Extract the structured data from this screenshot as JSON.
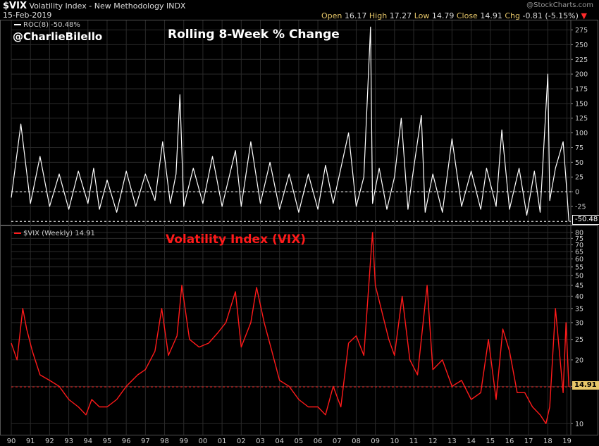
{
  "header": {
    "symbol": "$VIX",
    "name": "Volatility Index - New Methodology",
    "exchange": "INDX",
    "date": "15-Feb-2019",
    "watermark": "@StockCharts.com",
    "open_label": "Open",
    "open": "16.17",
    "high_label": "High",
    "high": "17.27",
    "low_label": "Low",
    "low": "14.79",
    "close_label": "Close",
    "close": "14.91",
    "chg_label": "Chg",
    "chg": "-0.81 (-5.15%)",
    "chg_arrow": "▼"
  },
  "handle": "@CharlieBilello",
  "colors": {
    "roc": "#ffffff",
    "vix": "#ff1a1a",
    "background": "#000000",
    "grid": "#2a2a2a"
  },
  "chart_data": [
    {
      "type": "line",
      "title": "Rolling 8-Week % Change",
      "legend": "ROC(8) -50.48%",
      "last_value_label": "-50.48",
      "y_axis_side": "right",
      "yticks": [
        275,
        250,
        225,
        200,
        175,
        150,
        125,
        100,
        75,
        50,
        25,
        0,
        -25
      ],
      "ylim": [
        -55,
        290
      ],
      "reference_line": -50.48,
      "zero_line": 0,
      "x": [
        1990.0,
        1990.5,
        1991.0,
        1991.5,
        1992.0,
        1992.5,
        1993.0,
        1993.5,
        1994.0,
        1994.3,
        1994.6,
        1995.0,
        1995.5,
        1996.0,
        1996.5,
        1997.0,
        1997.5,
        1997.9,
        1998.3,
        1998.6,
        1998.8,
        1999.0,
        1999.5,
        2000.0,
        2000.5,
        2001.0,
        2001.7,
        2002.0,
        2002.5,
        2003.0,
        2003.5,
        2004.0,
        2004.5,
        2005.0,
        2005.5,
        2006.0,
        2006.4,
        2006.8,
        2007.2,
        2007.6,
        2008.0,
        2008.4,
        2008.75,
        2008.85,
        2009.2,
        2009.6,
        2010.0,
        2010.35,
        2010.7,
        2011.0,
        2011.4,
        2011.6,
        2012.0,
        2012.5,
        2013.0,
        2013.5,
        2014.0,
        2014.5,
        2014.8,
        2015.3,
        2015.6,
        2016.0,
        2016.5,
        2016.9,
        2017.3,
        2017.6,
        2018.0,
        2018.1,
        2018.4,
        2018.8,
        2018.95,
        2019.1
      ],
      "values": [
        -10,
        115,
        -20,
        60,
        -25,
        30,
        -30,
        35,
        -20,
        40,
        -30,
        20,
        -35,
        35,
        -25,
        30,
        -15,
        85,
        -20,
        30,
        165,
        -25,
        40,
        -20,
        60,
        -25,
        70,
        -25,
        85,
        -20,
        50,
        -30,
        30,
        -35,
        30,
        -30,
        45,
        -20,
        40,
        100,
        -25,
        25,
        280,
        -20,
        40,
        -30,
        25,
        125,
        -30,
        40,
        130,
        -35,
        30,
        -35,
        90,
        -25,
        35,
        -30,
        40,
        -25,
        105,
        -30,
        40,
        -40,
        35,
        -35,
        200,
        -15,
        40,
        85,
        20,
        -50.48
      ]
    },
    {
      "type": "line",
      "title": "Volatility Index (VIX)",
      "legend": "$VIX (Weekly) 14.91",
      "last_value_label": "14.91",
      "y_axis_side": "right",
      "y_scale": "log",
      "yticks": [
        80,
        75,
        70,
        65,
        60,
        55,
        50,
        45,
        40,
        35,
        30,
        25,
        20,
        15,
        10
      ],
      "ytick_labels": [
        "80",
        "75",
        "70",
        "65",
        "60",
        "55",
        "50",
        "45",
        "40",
        "35",
        "30",
        "25",
        "20",
        "",
        "10"
      ],
      "ylim": [
        9,
        85
      ],
      "reference_line": 14.91,
      "x_tick_labels": [
        "90",
        "91",
        "92",
        "93",
        "94",
        "95",
        "96",
        "97",
        "98",
        "99",
        "00",
        "01",
        "02",
        "03",
        "04",
        "05",
        "06",
        "07",
        "08",
        "09",
        "10",
        "11",
        "12",
        "13",
        "14",
        "15",
        "16",
        "17",
        "18",
        "19"
      ],
      "x_ticks": [
        1990,
        1991,
        1992,
        1993,
        1994,
        1995,
        1996,
        1997,
        1998,
        1999,
        2000,
        2001,
        2002,
        2003,
        2004,
        2005,
        2006,
        2007,
        2008,
        2009,
        2010,
        2011,
        2012,
        2013,
        2014,
        2015,
        2016,
        2017,
        2018,
        2019
      ],
      "x": [
        1990.0,
        1990.3,
        1990.6,
        1990.8,
        1991.1,
        1991.5,
        1992.0,
        1992.5,
        1993.0,
        1993.5,
        1993.9,
        1994.2,
        1994.6,
        1995.0,
        1995.5,
        1996.0,
        1996.6,
        1997.0,
        1997.5,
        1997.85,
        1998.2,
        1998.65,
        1998.9,
        1999.3,
        1999.8,
        2000.3,
        2000.8,
        2001.2,
        2001.7,
        2002.0,
        2002.5,
        2002.8,
        2003.2,
        2003.6,
        2004.0,
        2004.5,
        2005.0,
        2005.5,
        2006.0,
        2006.4,
        2006.8,
        2007.2,
        2007.6,
        2008.0,
        2008.4,
        2008.85,
        2009.0,
        2009.3,
        2009.7,
        2010.0,
        2010.4,
        2010.8,
        2011.2,
        2011.7,
        2012.0,
        2012.5,
        2013.0,
        2013.5,
        2014.0,
        2014.5,
        2014.9,
        2015.3,
        2015.65,
        2016.0,
        2016.4,
        2016.8,
        2017.2,
        2017.6,
        2017.9,
        2018.1,
        2018.4,
        2018.8,
        2018.95,
        2019.1
      ],
      "values": [
        24,
        20,
        35,
        28,
        22,
        17,
        16,
        15,
        13,
        12,
        11,
        13,
        12,
        12,
        13,
        15,
        17,
        18,
        22,
        35,
        21,
        26,
        45,
        25,
        23,
        24,
        27,
        30,
        42,
        23,
        30,
        44,
        30,
        22,
        16,
        15,
        13,
        12,
        12,
        11,
        15,
        12,
        24,
        26,
        21,
        80,
        45,
        35,
        25,
        21,
        40,
        20,
        17,
        45,
        18,
        20,
        15,
        16,
        13,
        14,
        25,
        13,
        28,
        22,
        14,
        14,
        12,
        11,
        10,
        12,
        35,
        14,
        30,
        14.91
      ]
    }
  ]
}
